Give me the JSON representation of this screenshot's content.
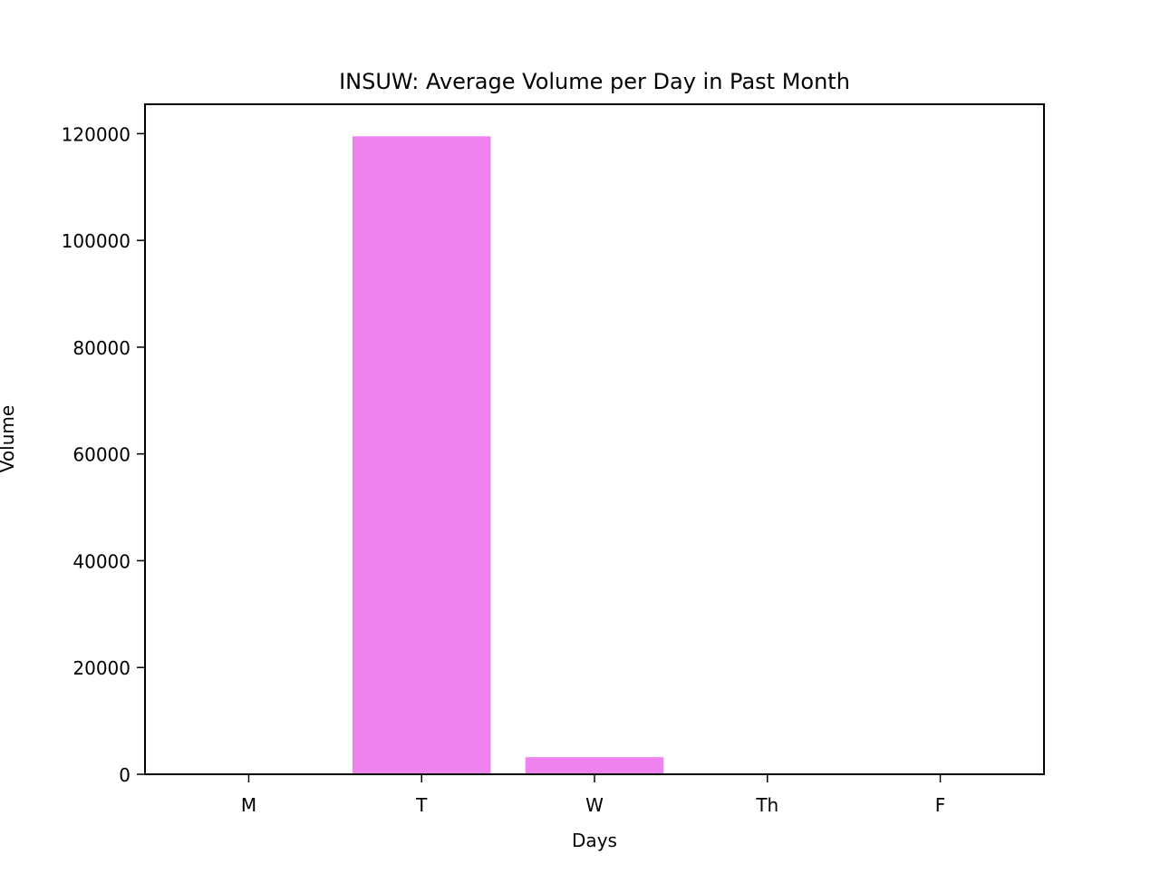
{
  "chart_data": {
    "type": "bar",
    "title": "INSUW: Average Volume per Day in Past Month",
    "xlabel": "Days",
    "ylabel": "Volume",
    "categories": [
      "M",
      "T",
      "W",
      "Th",
      "F"
    ],
    "values": [
      0,
      119500,
      3200,
      0,
      0
    ],
    "ylim": [
      0,
      125500
    ],
    "yticks": [
      0,
      20000,
      40000,
      60000,
      80000,
      100000,
      120000
    ],
    "bar_color": "#ee82ee",
    "grid": false,
    "legend": "none"
  }
}
